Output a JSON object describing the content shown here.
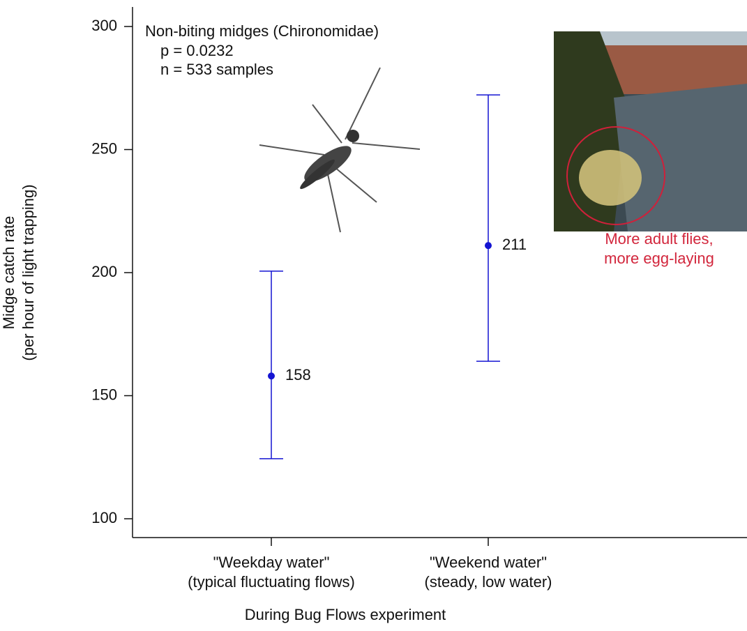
{
  "chart_data": {
    "type": "errorbar",
    "title": "Non-biting midges (Chironomidae)",
    "annotations": [
      "p = 0.0232",
      "n = 533 samples"
    ],
    "photo_caption": "More adult flies,\nmore egg-laying",
    "x_label": "During Bug Flows experiment",
    "y_label": "Midge catch rate\n(per hour of light trapping)",
    "categories": [
      "\"Weekday water\"\n(typical fluctuating flows)",
      "\"Weekend water\"\n(steady, low water)"
    ],
    "values": [
      158,
      211
    ],
    "lower": [
      124.4,
      164
    ],
    "upper": [
      200.6,
      272.2
    ],
    "color": "#1414d2",
    "caption_color": "#d2263c",
    "ylim": [
      100,
      300
    ],
    "yticks": [
      100,
      150,
      200,
      250,
      300
    ]
  }
}
